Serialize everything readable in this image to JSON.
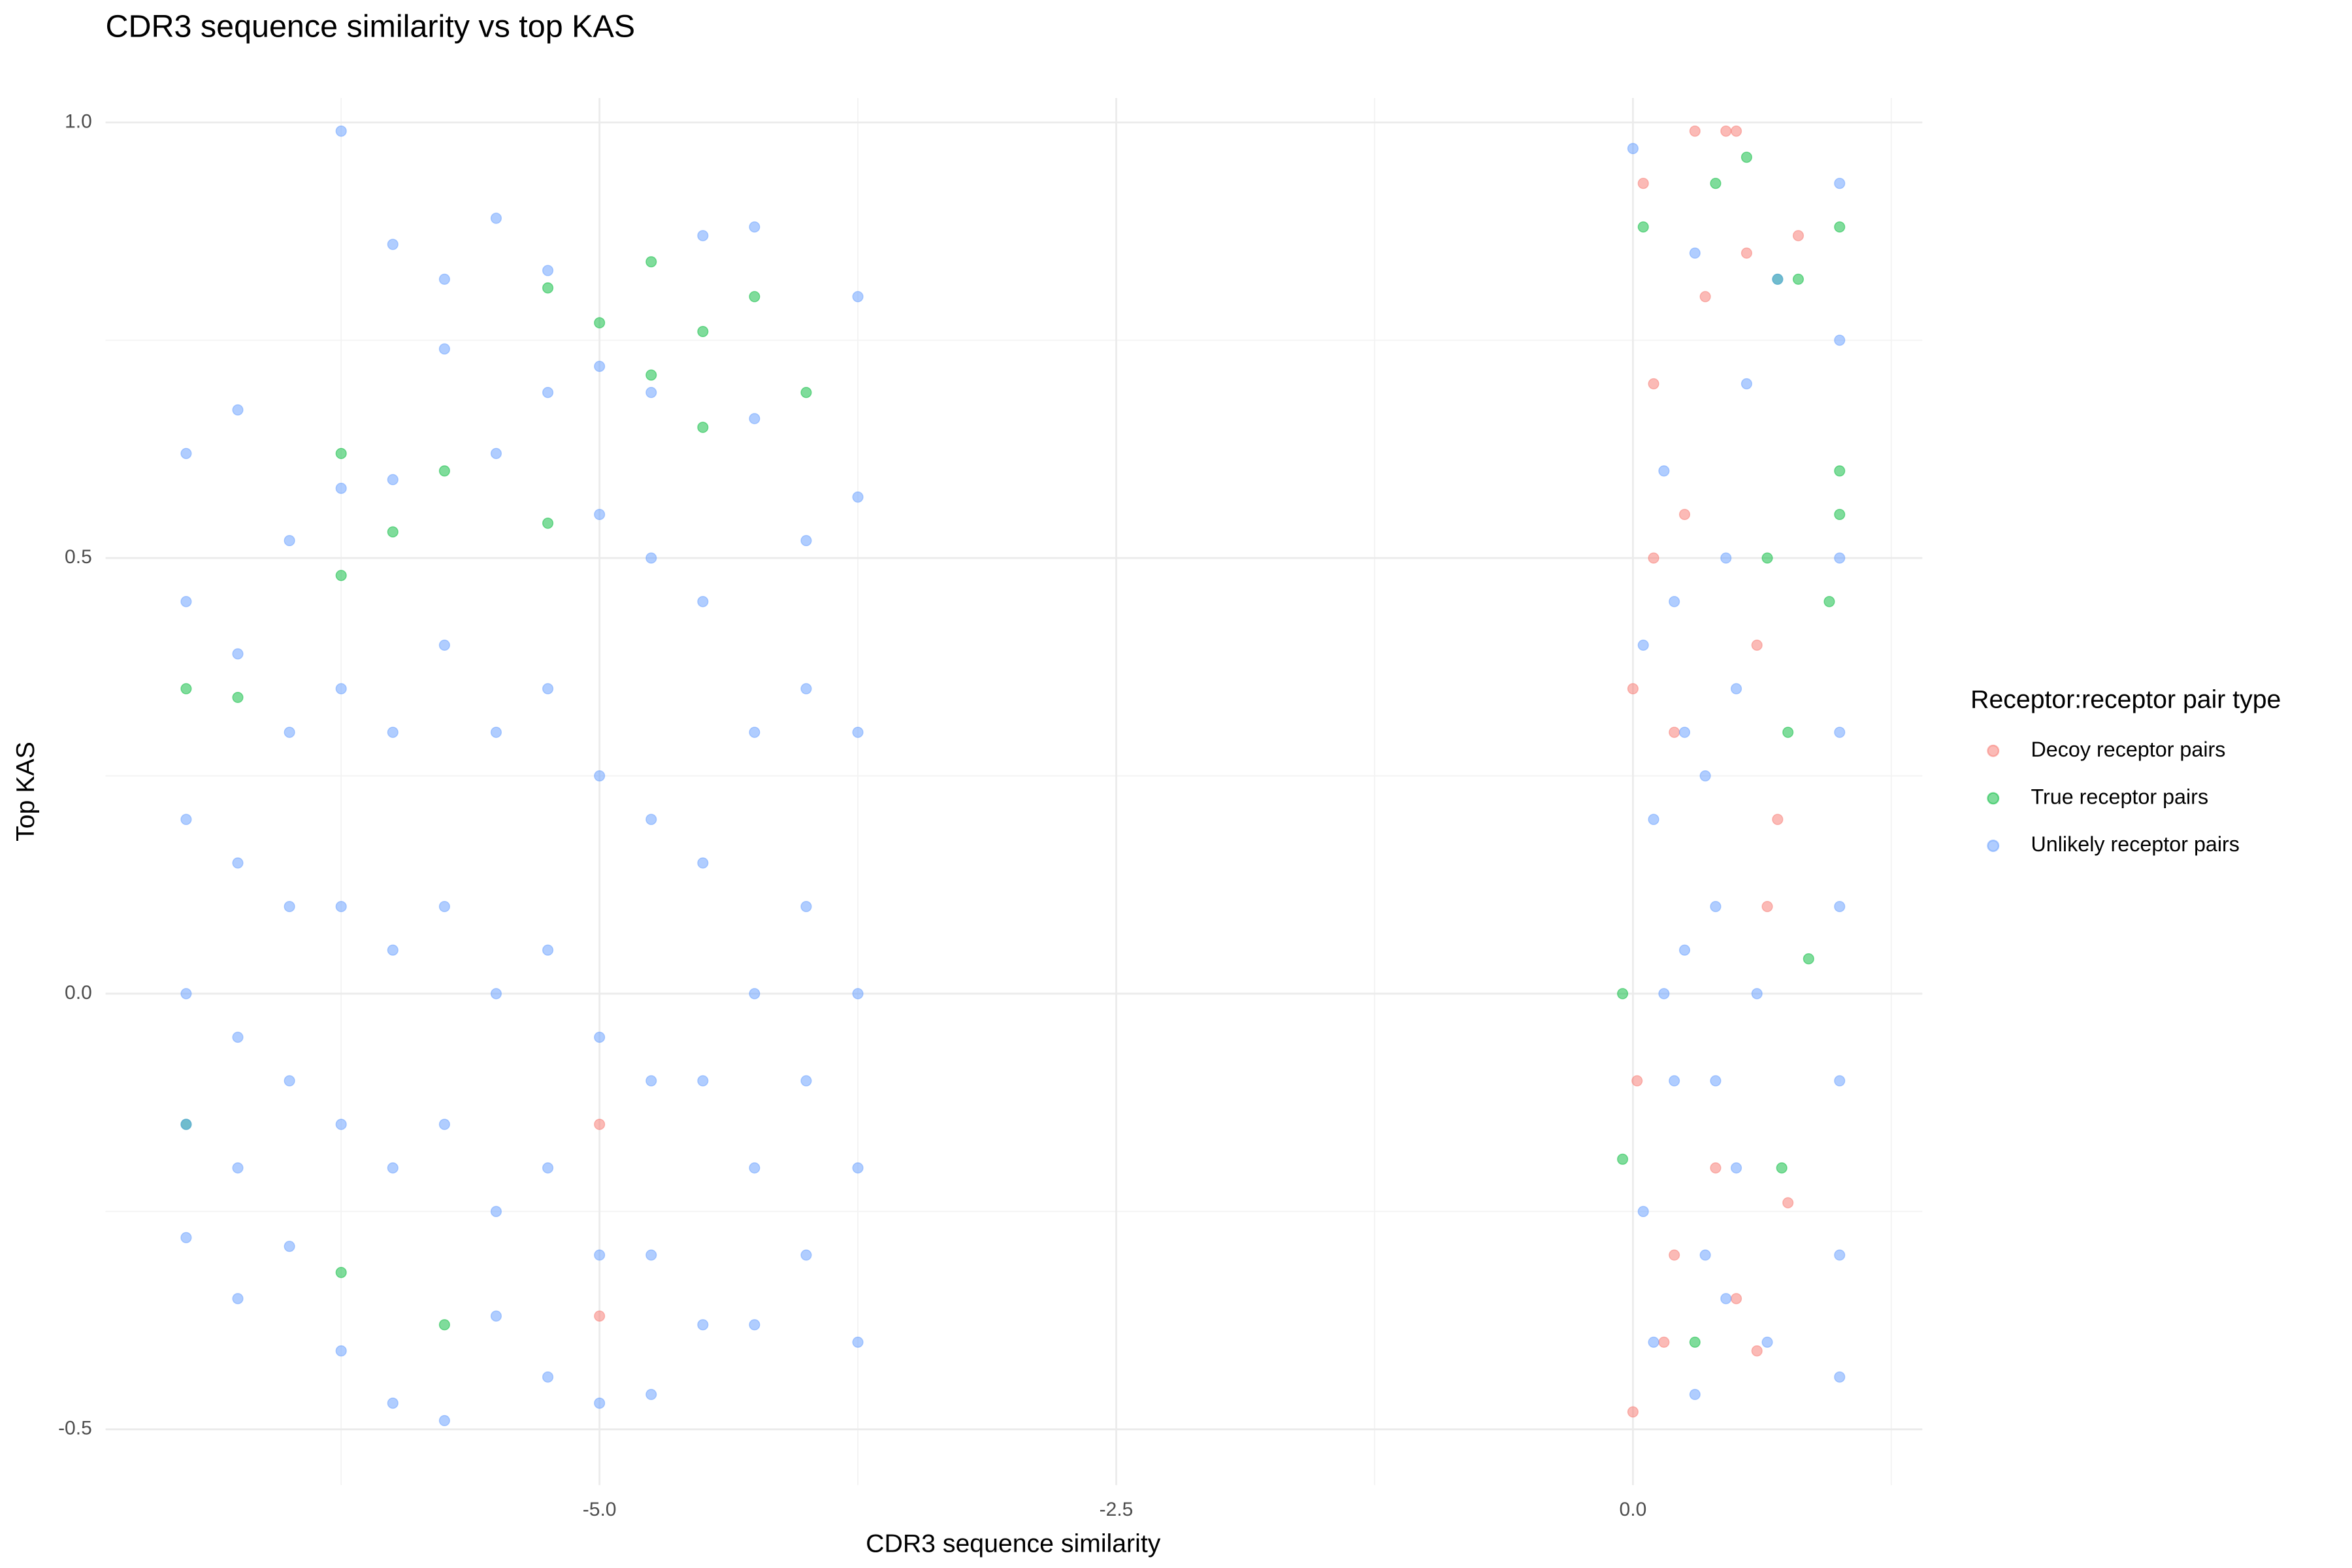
{
  "chart_data": {
    "type": "scatter",
    "title": "CDR3 sequence similarity vs top KAS",
    "x_label": "CDR3 sequence similarity",
    "y_label": "Top KAS",
    "xlim": [
      -7.39,
      1.4
    ],
    "ylim": [
      -0.564,
      1.028
    ],
    "xticks": [
      {
        "value": -5,
        "label": "-5.0"
      },
      -2.5,
      {
        "value": 0,
        "label": "0.0"
      }
    ],
    "yticks": [
      -0.5,
      {
        "value": 0,
        "label": "0.0"
      },
      0.5,
      {
        "value": 1,
        "label": "1.0"
      }
    ],
    "x_minor_ticks": [
      -6.25,
      -3.75,
      -1.25,
      1.25
    ],
    "y_minor_ticks": [
      -0.25,
      0.25,
      0.75
    ],
    "grid": true,
    "legend_title": "Receptor:receptor pair type",
    "legend_position": "right",
    "point_opacity": 0.5,
    "series": [
      {
        "name": "Decoy receptor pairs",
        "color": "#F8766D",
        "x": [
          0.0,
          0.05,
          0.1,
          0.15,
          0.2,
          0.25,
          0.3,
          0.35,
          0.4,
          0.45,
          0.5,
          0.55,
          0.6,
          0.65,
          0.7,
          0.75,
          0.8,
          0.0,
          0.02,
          0.1,
          0.2,
          0.5,
          0.6,
          -5.0,
          -5.0
        ],
        "y": [
          -0.48,
          0.93,
          0.7,
          -0.4,
          0.3,
          0.55,
          0.99,
          0.8,
          -0.2,
          0.99,
          0.99,
          0.85,
          0.4,
          0.1,
          0.2,
          -0.24,
          0.87,
          0.35,
          -0.1,
          0.5,
          -0.3,
          -0.35,
          -0.41,
          -0.37,
          -0.15
        ]
      },
      {
        "name": "True receptor pairs",
        "color": "#00BA38",
        "x": [
          -6.25,
          -6.25,
          -6.0,
          -5.75,
          -5.75,
          -5.25,
          -5.25,
          -5.0,
          -4.75,
          -4.75,
          -4.5,
          -4.5,
          -4.25,
          -4.0,
          -7.0,
          -6.75,
          -7.0,
          -6.25,
          0.05,
          0.4,
          0.55,
          0.7,
          0.8,
          0.65,
          0.75,
          0.85,
          0.72,
          0.3,
          -0.05,
          -0.05,
          1.0,
          1.0,
          1.0,
          0.95
        ],
        "y": [
          0.62,
          0.48,
          0.53,
          0.6,
          -0.38,
          0.81,
          0.54,
          0.77,
          0.84,
          0.71,
          0.76,
          0.65,
          0.8,
          0.69,
          0.35,
          0.34,
          -0.15,
          -0.32,
          0.88,
          0.93,
          0.96,
          0.82,
          0.82,
          0.5,
          0.3,
          0.04,
          -0.2,
          -0.4,
          0.0,
          -0.19,
          0.88,
          0.6,
          0.55,
          0.45
        ]
      },
      {
        "name": "Unlikely receptor pairs",
        "color": "#619CFF",
        "x": [
          -7,
          -7,
          -7,
          -7,
          -7,
          -7,
          -6.75,
          -6.75,
          -6.75,
          -6.75,
          -6.75,
          -6.75,
          -6.5,
          -6.5,
          -6.5,
          -6.5,
          -6.5,
          -6.25,
          -6.25,
          -6.25,
          -6.25,
          -6.25,
          -6.25,
          -6,
          -6,
          -6,
          -6,
          -6,
          -6,
          -5.75,
          -5.75,
          -5.75,
          -5.75,
          -5.75,
          -5.75,
          -5.5,
          -5.5,
          -5.5,
          -5.5,
          -5.5,
          -5.5,
          -5.25,
          -5.25,
          -5.25,
          -5.25,
          -5.25,
          -5.25,
          -5,
          -5,
          -5,
          -5,
          -5,
          -5,
          -4.75,
          -4.75,
          -4.75,
          -4.75,
          -4.75,
          -4.75,
          -4.5,
          -4.5,
          -4.5,
          -4.5,
          -4.5,
          -4.25,
          -4.25,
          -4.25,
          -4.25,
          -4.25,
          -4.25,
          -4,
          -4,
          -4,
          -4,
          -4,
          -3.75,
          -3.75,
          -3.75,
          -3.75,
          -3.75,
          -3.75,
          0.0,
          0.05,
          0.1,
          0.15,
          0.2,
          0.25,
          0.3,
          0.35,
          0.4,
          0.45,
          0.5,
          0.55,
          0.6,
          0.65,
          0.7,
          0.3,
          0.15,
          0.05,
          0.4,
          0.2,
          0.1,
          0.35,
          0.5,
          0.45,
          0.25,
          1,
          1,
          1,
          1,
          1,
          1,
          1,
          1
        ],
        "y": [
          0.62,
          0.45,
          0.2,
          0.0,
          -0.15,
          -0.28,
          0.67,
          0.39,
          0.15,
          -0.05,
          -0.2,
          -0.35,
          0.52,
          0.3,
          0.1,
          -0.1,
          -0.29,
          0.99,
          0.58,
          0.35,
          0.1,
          -0.15,
          -0.41,
          0.86,
          0.59,
          0.3,
          0.05,
          -0.2,
          -0.47,
          0.82,
          0.74,
          0.4,
          0.1,
          -0.15,
          -0.49,
          0.89,
          0.62,
          0.3,
          0.0,
          -0.25,
          -0.37,
          0.83,
          0.69,
          0.35,
          0.05,
          -0.2,
          -0.44,
          0.72,
          0.55,
          0.25,
          -0.05,
          -0.3,
          -0.47,
          0.69,
          0.5,
          0.2,
          -0.1,
          -0.3,
          -0.46,
          0.87,
          0.45,
          0.15,
          -0.1,
          -0.38,
          0.88,
          0.66,
          0.3,
          0.0,
          -0.2,
          -0.38,
          0.52,
          0.35,
          0.1,
          -0.1,
          -0.3,
          0.8,
          0.57,
          0.3,
          0.0,
          -0.2,
          -0.4,
          0.97,
          0.4,
          0.2,
          0.6,
          -0.1,
          0.3,
          0.85,
          -0.3,
          0.1,
          0.5,
          -0.2,
          0.7,
          0.0,
          -0.4,
          0.82,
          -0.46,
          0.0,
          -0.25,
          -0.1,
          0.45,
          -0.4,
          0.25,
          0.35,
          -0.35,
          0.05,
          0.93,
          0.75,
          0.5,
          0.3,
          0.1,
          -0.1,
          -0.3,
          -0.44
        ]
      }
    ]
  }
}
